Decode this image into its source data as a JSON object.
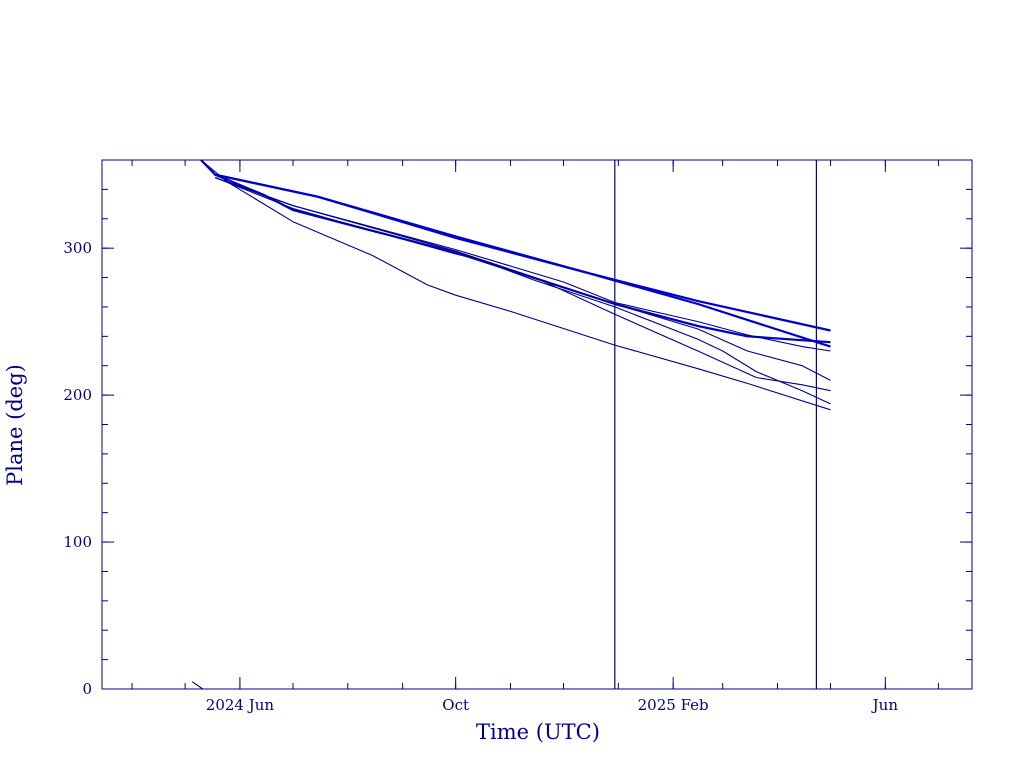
{
  "chart_data": {
    "type": "line",
    "title": "",
    "xlabel": "Time (UTC)",
    "ylabel": "Plane (deg)",
    "xlim": [
      "2024-03-15",
      "2025-07-20"
    ],
    "ylim": [
      0,
      360
    ],
    "grid": false,
    "colors": {
      "axis": "#00008b",
      "series": "#00008b",
      "bold_series": "#0000cd"
    },
    "x_ticks": [
      {
        "label": "2024 Jun",
        "date": "2024-06-01"
      },
      {
        "label": "Oct",
        "date": "2024-10-01"
      },
      {
        "label": "2025 Feb",
        "date": "2025-02-01"
      },
      {
        "label": "Jun",
        "date": "2025-06-01"
      }
    ],
    "y_ticks": [
      {
        "label": "0",
        "value": 0
      },
      {
        "label": "100",
        "value": 100
      },
      {
        "label": "200",
        "value": 200
      },
      {
        "label": "300",
        "value": 300
      }
    ],
    "vertical_lines": [
      "2024-12-30",
      "2025-04-23"
    ],
    "series": [
      {
        "bold": true,
        "points": [
          [
            "2024-05-10",
            360
          ],
          [
            "2024-05-18",
            350
          ],
          [
            "2024-07-15",
            335
          ],
          [
            "2024-10-01",
            308
          ],
          [
            "2024-12-15",
            283
          ],
          [
            "2025-02-15",
            264
          ],
          [
            "2025-05-01",
            244
          ]
        ]
      },
      {
        "bold": true,
        "points": [
          [
            "2024-05-18",
            350
          ],
          [
            "2024-06-15",
            336
          ],
          [
            "2024-07-01",
            326
          ],
          [
            "2024-10-01",
            297
          ],
          [
            "2024-12-30",
            262
          ],
          [
            "2025-02-15",
            247
          ],
          [
            "2025-03-15",
            240
          ],
          [
            "2025-05-01",
            236
          ]
        ]
      },
      {
        "bold": true,
        "points": [
          [
            "2024-05-18",
            350
          ],
          [
            "2024-07-15",
            335
          ],
          [
            "2024-10-01",
            307
          ],
          [
            "2024-12-15",
            283
          ],
          [
            "2025-02-15",
            262
          ],
          [
            "2025-05-01",
            233
          ]
        ]
      },
      {
        "bold": false,
        "points": [
          [
            "2024-05-10",
            360
          ],
          [
            "2024-05-25",
            345
          ],
          [
            "2024-07-01",
            318
          ],
          [
            "2024-08-15",
            295
          ],
          [
            "2024-09-15",
            275
          ],
          [
            "2024-10-01",
            268
          ],
          [
            "2024-11-01",
            257
          ],
          [
            "2024-12-30",
            234
          ],
          [
            "2025-02-15",
            218
          ],
          [
            "2025-03-15",
            208
          ],
          [
            "2025-05-01",
            190
          ]
        ]
      },
      {
        "bold": false,
        "points": [
          [
            "2024-05-18",
            348
          ],
          [
            "2024-07-01",
            327
          ],
          [
            "2024-10-01",
            296
          ],
          [
            "2024-10-15",
            292
          ],
          [
            "2024-11-15",
            280
          ],
          [
            "2024-12-30",
            255
          ],
          [
            "2025-02-15",
            230
          ],
          [
            "2025-03-20",
            212
          ],
          [
            "2025-04-15",
            207
          ],
          [
            "2025-05-01",
            203
          ]
        ]
      },
      {
        "bold": false,
        "points": [
          [
            "2024-05-18",
            348
          ],
          [
            "2024-07-01",
            329
          ],
          [
            "2024-10-01",
            299
          ],
          [
            "2024-12-01",
            277
          ],
          [
            "2024-12-30",
            263
          ],
          [
            "2025-02-15",
            250
          ],
          [
            "2025-03-15",
            241
          ],
          [
            "2025-04-15",
            233
          ],
          [
            "2025-05-01",
            230
          ]
        ]
      },
      {
        "bold": false,
        "points": [
          [
            "2024-05-18",
            348
          ],
          [
            "2024-07-01",
            329
          ],
          [
            "2024-10-01",
            298
          ],
          [
            "2024-11-15",
            280
          ],
          [
            "2024-12-30",
            262
          ],
          [
            "2025-02-15",
            245
          ],
          [
            "2025-03-15",
            230
          ],
          [
            "2025-04-15",
            220
          ],
          [
            "2025-05-01",
            210
          ]
        ]
      },
      {
        "bold": false,
        "points": [
          [
            "2024-05-18",
            348
          ],
          [
            "2024-07-01",
            329
          ],
          [
            "2024-10-01",
            298
          ],
          [
            "2024-11-15",
            278
          ],
          [
            "2024-12-30",
            260
          ],
          [
            "2025-02-15",
            238
          ],
          [
            "2025-03-01",
            230
          ],
          [
            "2025-03-20",
            216
          ],
          [
            "2025-04-15",
            203
          ],
          [
            "2025-05-01",
            194
          ]
        ]
      },
      {
        "bold": false,
        "points": [
          [
            "2024-05-05",
            5
          ],
          [
            "2024-05-11",
            0
          ]
        ]
      }
    ]
  }
}
